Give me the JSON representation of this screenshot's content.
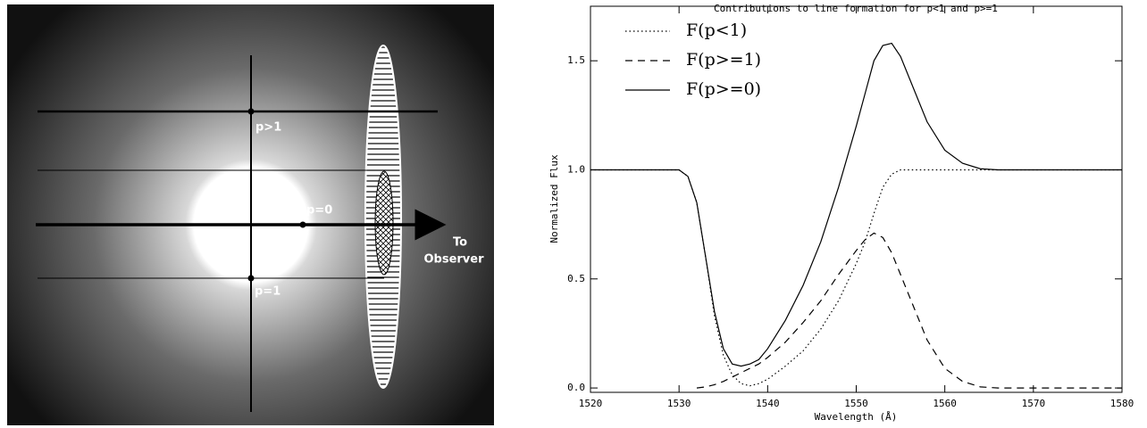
{
  "diagram": {
    "labels": [
      "p>1",
      "p=0",
      "p=1"
    ],
    "observer": [
      "To",
      "Observer"
    ]
  },
  "chart_data": {
    "type": "line",
    "title": "Contributions to line formation for p<1 and p>=1",
    "xlabel": "Wavelength (Å)",
    "ylabel": "Normalized Flux",
    "x": [
      1520,
      1528,
      1530,
      1531,
      1532,
      1533,
      1534,
      1535,
      1536,
      1537,
      1538,
      1539,
      1540,
      1542,
      1544,
      1546,
      1548,
      1550,
      1551,
      1552,
      1553,
      1554,
      1555,
      1556,
      1558,
      1560,
      1562,
      1564,
      1566,
      1570,
      1580
    ],
    "series": [
      {
        "name": "F(p<1)",
        "color": "#000000",
        "dash": "dotted",
        "values": [
          1,
          1,
          1,
          0.97,
          0.85,
          0.6,
          0.33,
          0.15,
          0.06,
          0.02,
          0.01,
          0.02,
          0.04,
          0.1,
          0.17,
          0.27,
          0.4,
          0.57,
          0.67,
          0.8,
          0.92,
          0.98,
          1,
          1,
          1,
          1,
          1,
          1,
          1,
          1,
          1
        ]
      },
      {
        "name": "F(p>=1)",
        "color": "#000000",
        "dash": "dashed",
        "values": [
          null,
          null,
          null,
          null,
          0,
          0.005,
          0.015,
          0.03,
          0.05,
          0.07,
          0.09,
          0.11,
          0.14,
          0.21,
          0.3,
          0.4,
          0.52,
          0.63,
          0.68,
          0.71,
          0.69,
          0.62,
          0.52,
          0.42,
          0.22,
          0.09,
          0.03,
          0.005,
          0,
          0,
          0
        ]
      },
      {
        "name": "F(p>=0)",
        "color": "#000000",
        "dash": "solid",
        "values": [
          1,
          1,
          1,
          0.97,
          0.85,
          0.6,
          0.35,
          0.18,
          0.11,
          0.1,
          0.11,
          0.13,
          0.18,
          0.31,
          0.47,
          0.67,
          0.92,
          1.2,
          1.35,
          1.5,
          1.57,
          1.58,
          1.52,
          1.42,
          1.22,
          1.09,
          1.03,
          1.005,
          1,
          1,
          1
        ]
      }
    ],
    "xlim": [
      1520,
      1580
    ],
    "ylim": [
      -0.02,
      1.75
    ],
    "xticks": [
      1520,
      1530,
      1540,
      1550,
      1560,
      1570,
      1580
    ],
    "yticks": [
      {
        "value": 0,
        "label": "0.0"
      },
      0.5,
      {
        "value": 1,
        "label": "1.0"
      },
      1.5
    ],
    "legend": "upper left"
  }
}
